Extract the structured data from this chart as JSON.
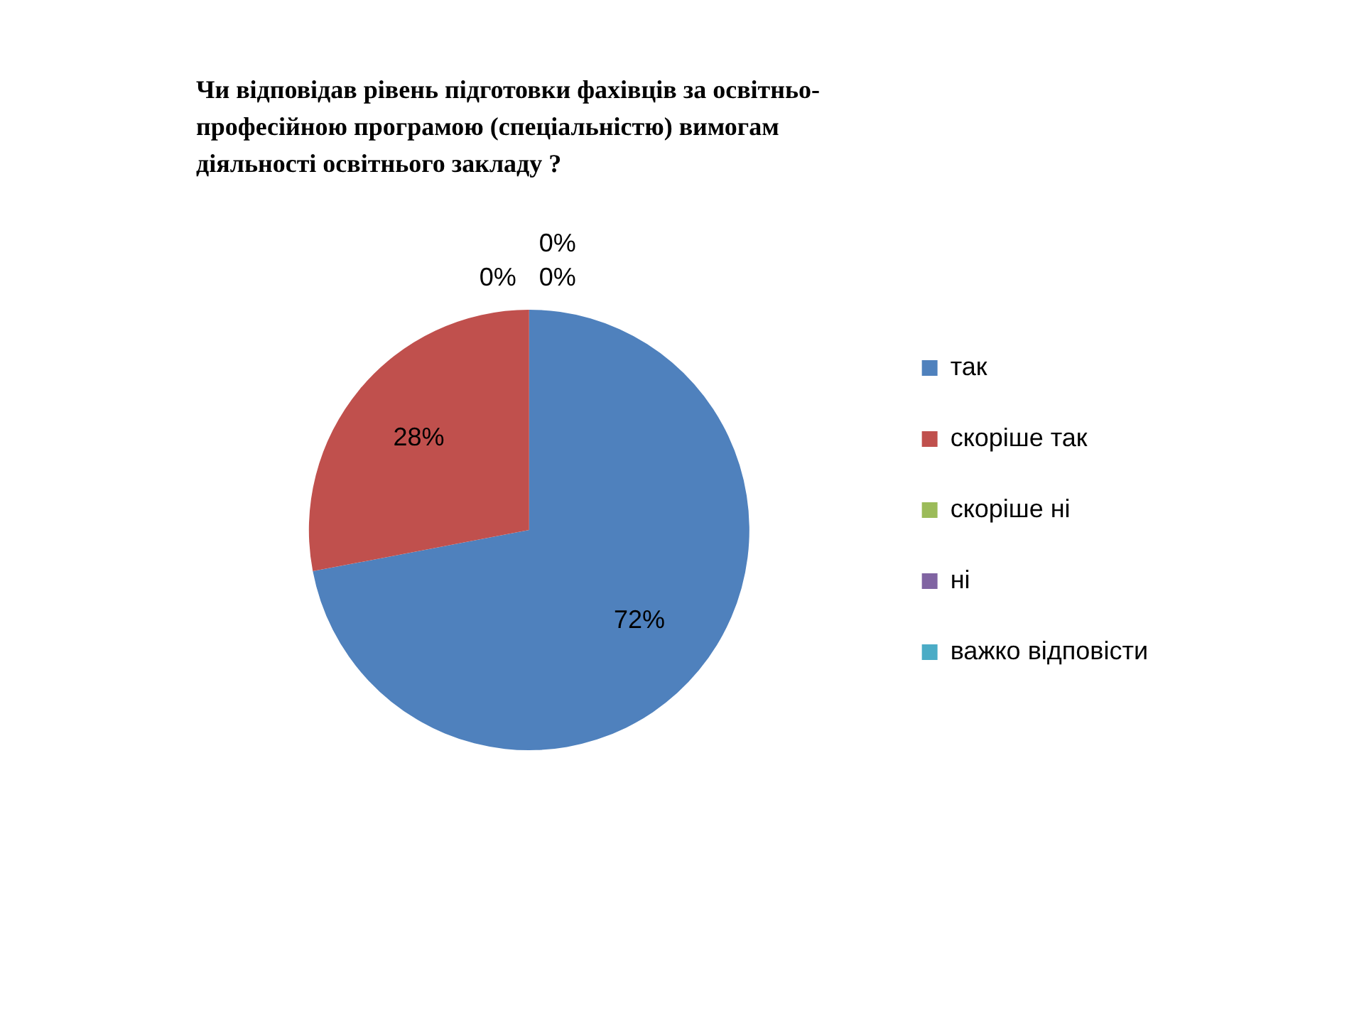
{
  "chart_data": {
    "type": "pie",
    "title": "Чи відповідав рівень підготовки фахівців за освітньо-професійною програмою (спеціальністю) вимогам діяльності освітнього закладу ?",
    "categories": [
      "так",
      "скоріше так",
      "скоріше ні",
      "ні",
      "важко відповісти"
    ],
    "values": [
      72,
      28,
      0,
      0,
      0
    ],
    "colors": [
      "#4f81bd",
      "#c0504d",
      "#9bbb59",
      "#8064a2",
      "#4bacc6"
    ],
    "value_labels": [
      "72%",
      "28%",
      "0%",
      "0%",
      "0%"
    ],
    "legend": "right"
  }
}
